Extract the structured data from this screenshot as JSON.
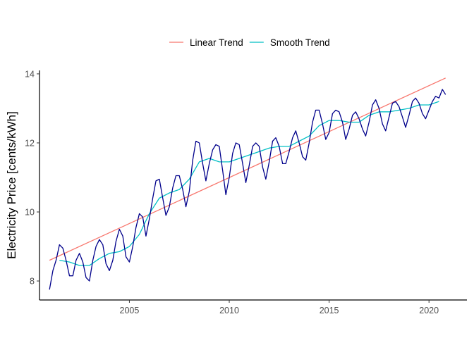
{
  "chart_data": {
    "type": "line",
    "title": "",
    "xlabel": "",
    "ylabel": "Electricity Price [cents/kWh]",
    "xlim": [
      2000.5,
      2021.9
    ],
    "ylim": [
      7.45,
      14.1
    ],
    "x_ticks": [
      2005,
      2010,
      2015,
      2020
    ],
    "y_ticks": [
      8,
      10,
      12,
      14
    ],
    "grid": false,
    "legend_position": "top",
    "series": [
      {
        "name": "",
        "color": "#00008b",
        "x": [
          2001.0,
          2001.17,
          2001.33,
          2001.5,
          2001.67,
          2001.83,
          2002.0,
          2002.17,
          2002.33,
          2002.5,
          2002.67,
          2002.83,
          2003.0,
          2003.17,
          2003.33,
          2003.5,
          2003.67,
          2003.83,
          2004.0,
          2004.17,
          2004.33,
          2004.5,
          2004.67,
          2004.83,
          2005.0,
          2005.17,
          2005.33,
          2005.5,
          2005.67,
          2005.83,
          2006.0,
          2006.17,
          2006.33,
          2006.5,
          2006.67,
          2006.83,
          2007.0,
          2007.17,
          2007.33,
          2007.5,
          2007.67,
          2007.83,
          2008.0,
          2008.17,
          2008.33,
          2008.5,
          2008.67,
          2008.83,
          2009.0,
          2009.17,
          2009.33,
          2009.5,
          2009.67,
          2009.83,
          2010.0,
          2010.17,
          2010.33,
          2010.5,
          2010.67,
          2010.83,
          2011.0,
          2011.17,
          2011.33,
          2011.5,
          2011.67,
          2011.83,
          2012.0,
          2012.17,
          2012.33,
          2012.5,
          2012.67,
          2012.83,
          2013.0,
          2013.17,
          2013.33,
          2013.5,
          2013.67,
          2013.83,
          2014.0,
          2014.17,
          2014.33,
          2014.5,
          2014.67,
          2014.83,
          2015.0,
          2015.17,
          2015.33,
          2015.5,
          2015.67,
          2015.83,
          2016.0,
          2016.17,
          2016.33,
          2016.5,
          2016.67,
          2016.83,
          2017.0,
          2017.17,
          2017.33,
          2017.5,
          2017.67,
          2017.83,
          2018.0,
          2018.17,
          2018.33,
          2018.5,
          2018.67,
          2018.83,
          2019.0,
          2019.17,
          2019.33,
          2019.5,
          2019.67,
          2019.83,
          2020.0,
          2020.17,
          2020.33,
          2020.5,
          2020.67,
          2020.83
        ],
        "y": [
          7.75,
          8.3,
          8.6,
          9.05,
          8.95,
          8.6,
          8.15,
          8.15,
          8.6,
          8.8,
          8.55,
          8.1,
          8.0,
          8.6,
          9.0,
          9.2,
          9.05,
          8.5,
          8.3,
          8.6,
          9.15,
          9.5,
          9.3,
          8.7,
          8.55,
          9.0,
          9.55,
          9.95,
          9.85,
          9.3,
          9.8,
          10.4,
          10.9,
          10.95,
          10.4,
          9.9,
          10.15,
          10.7,
          11.05,
          11.05,
          10.65,
          10.15,
          10.6,
          11.5,
          12.05,
          12.0,
          11.4,
          10.9,
          11.4,
          11.8,
          11.95,
          11.9,
          11.2,
          10.5,
          11.0,
          11.7,
          12.0,
          11.95,
          11.4,
          10.85,
          11.35,
          11.9,
          12.0,
          11.9,
          11.3,
          10.95,
          11.45,
          12.05,
          12.15,
          11.9,
          11.4,
          11.4,
          11.75,
          12.15,
          12.35,
          12.0,
          11.6,
          11.5,
          12.0,
          12.6,
          12.95,
          12.95,
          12.55,
          12.1,
          12.3,
          12.85,
          12.95,
          12.9,
          12.6,
          12.1,
          12.4,
          12.8,
          12.9,
          12.7,
          12.4,
          12.2,
          12.6,
          13.1,
          13.25,
          13.0,
          12.55,
          12.35,
          12.75,
          13.15,
          13.2,
          13.05,
          12.75,
          12.45,
          12.8,
          13.2,
          13.3,
          13.15,
          12.85,
          12.7,
          12.95,
          13.2,
          13.35,
          13.3,
          13.55,
          13.4
        ]
      },
      {
        "name": "Linear Trend",
        "color": "#f8766d",
        "x": [
          2001.0,
          2020.83
        ],
        "y": [
          8.6,
          13.88
        ]
      },
      {
        "name": "Smooth Trend",
        "color": "#00bfc4",
        "x": [
          2001.5,
          2002.0,
          2002.5,
          2003.0,
          2003.5,
          2004.0,
          2004.5,
          2005.0,
          2005.5,
          2006.0,
          2006.5,
          2007.0,
          2007.5,
          2008.0,
          2008.5,
          2009.0,
          2009.5,
          2010.0,
          2010.5,
          2011.0,
          2011.5,
          2012.0,
          2012.5,
          2013.0,
          2013.5,
          2014.0,
          2014.5,
          2015.0,
          2015.5,
          2016.0,
          2016.5,
          2017.0,
          2017.5,
          2018.0,
          2018.5,
          2019.0,
          2019.5,
          2020.0,
          2020.5
        ],
        "y": [
          8.6,
          8.55,
          8.45,
          8.45,
          8.65,
          8.8,
          8.85,
          9.0,
          9.35,
          9.95,
          10.4,
          10.55,
          10.65,
          10.95,
          11.45,
          11.55,
          11.45,
          11.45,
          11.55,
          11.65,
          11.75,
          11.85,
          11.9,
          11.9,
          12.05,
          12.2,
          12.5,
          12.65,
          12.65,
          12.6,
          12.6,
          12.8,
          12.9,
          12.9,
          12.95,
          13.0,
          13.1,
          13.1,
          13.2
        ]
      }
    ]
  }
}
